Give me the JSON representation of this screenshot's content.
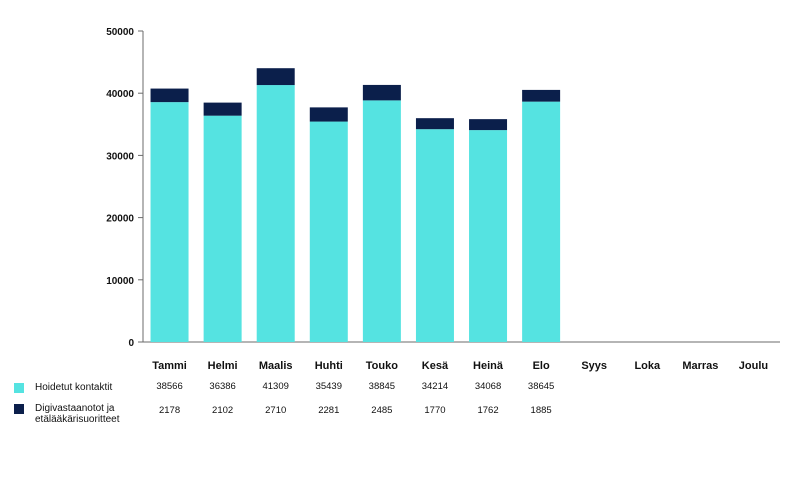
{
  "chart_data": {
    "type": "bar",
    "stacked": true,
    "categories": [
      "Tammi",
      "Helmi",
      "Maalis",
      "Huhti",
      "Touko",
      "Kesä",
      "Heinä",
      "Elo",
      "Syys",
      "Loka",
      "Marras",
      "Joulu"
    ],
    "series": [
      {
        "name": "Hoidetut kontaktit",
        "color": "#55E3E1",
        "values": [
          38566,
          36386,
          41309,
          35439,
          38845,
          34214,
          34068,
          38645,
          null,
          null,
          null,
          null
        ],
        "labels": [
          "38566",
          "36386",
          "41309",
          "35439",
          "38845",
          "34214",
          "34068",
          "38645",
          "",
          "",
          "",
          ""
        ]
      },
      {
        "name": "Digivastaanotot ja etälääkärisuoritteet",
        "color": "#0B1F4B",
        "values": [
          2178,
          2102,
          2710,
          2281,
          2485,
          1770,
          1762,
          1885,
          null,
          null,
          null,
          null
        ],
        "labels": [
          "2178",
          "2102",
          "2710",
          "2281",
          "2485",
          "1770",
          "1762",
          "1885",
          "",
          "",
          "",
          ""
        ]
      }
    ],
    "yticks": [
      {
        "value": 0,
        "label": "0"
      },
      {
        "value": 10000,
        "label": "10000"
      },
      {
        "value": 20000,
        "label": "20000"
      },
      {
        "value": 30000,
        "label": "30000"
      },
      {
        "value": 40000,
        "label": "40000"
      },
      {
        "value": 50000,
        "label": "50000"
      }
    ],
    "ylim": [
      0,
      50000
    ],
    "grid": false,
    "legend": "bottom-left table"
  }
}
